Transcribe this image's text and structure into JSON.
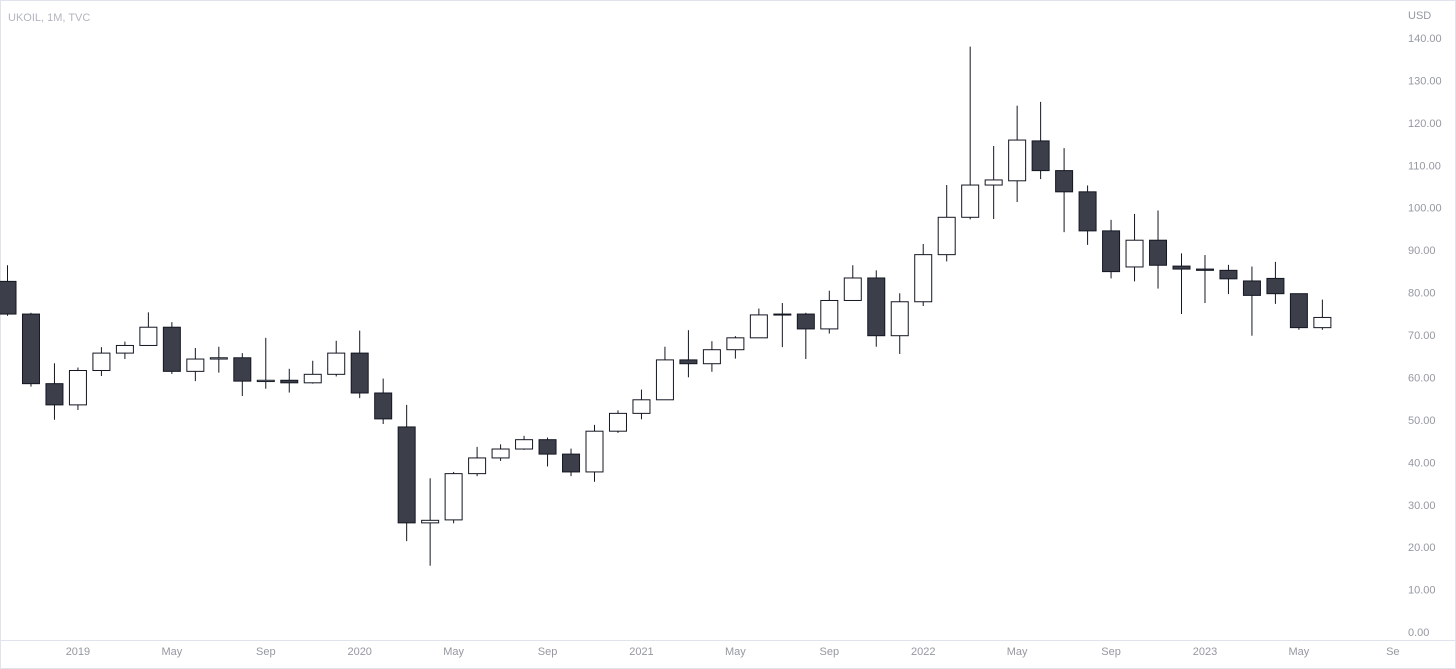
{
  "chart_data": {
    "type": "candlestick",
    "title": "UKOIL, 1M, TVC",
    "currency": "USD",
    "x": [
      "2018-10",
      "2018-11",
      "2018-12",
      "2019-01",
      "2019-02",
      "2019-03",
      "2019-04",
      "2019-05",
      "2019-06",
      "2019-07",
      "2019-08",
      "2019-09",
      "2019-10",
      "2019-11",
      "2019-12",
      "2020-01",
      "2020-02",
      "2020-03",
      "2020-04",
      "2020-05",
      "2020-06",
      "2020-07",
      "2020-08",
      "2020-09",
      "2020-10",
      "2020-11",
      "2020-12",
      "2021-01",
      "2021-02",
      "2021-03",
      "2021-04",
      "2021-05",
      "2021-06",
      "2021-07",
      "2021-08",
      "2021-09",
      "2021-10",
      "2021-11",
      "2021-12",
      "2022-01",
      "2022-02",
      "2022-03",
      "2022-04",
      "2022-05",
      "2022-06",
      "2022-07",
      "2022-08",
      "2022-09",
      "2022-10",
      "2022-11",
      "2022-12",
      "2023-01",
      "2023-02",
      "2023-03",
      "2023-04",
      "2023-05",
      "2023-06"
    ],
    "open": [
      82.9,
      75.2,
      58.8,
      53.8,
      61.9,
      66.0,
      67.8,
      72.1,
      61.7,
      64.6,
      64.9,
      59.3,
      59.6,
      59.0,
      61.0,
      66.0,
      56.6,
      48.6,
      26.0,
      26.7,
      37.6,
      41.3,
      43.4,
      45.6,
      42.2,
      38.0,
      47.6,
      51.8,
      55.0,
      64.4,
      63.5,
      66.8,
      69.6,
      75.0,
      75.2,
      71.7,
      78.4,
      83.7,
      70.1,
      78.1,
      89.2,
      98.0,
      105.6,
      106.6,
      116.0,
      109.0,
      104.0,
      94.8,
      86.3,
      92.6,
      86.5,
      85.8,
      85.5,
      83.0,
      83.6,
      80.0,
      72.0
    ],
    "high": [
      86.7,
      75.5,
      63.6,
      62.6,
      67.4,
      68.7,
      75.6,
      73.3,
      67.2,
      67.5,
      66.0,
      69.6,
      62.3,
      64.2,
      68.9,
      71.3,
      60.0,
      53.8,
      36.5,
      38.0,
      43.9,
      44.5,
      46.5,
      46.1,
      43.5,
      49.1,
      52.5,
      57.4,
      67.5,
      71.4,
      68.8,
      70.0,
      76.5,
      77.8,
      75.5,
      80.7,
      86.7,
      85.5,
      80.1,
      91.7,
      105.6,
      138.2,
      114.8,
      124.3,
      125.2,
      114.3,
      105.5,
      97.4,
      98.8,
      99.6,
      89.5,
      89.1,
      86.8,
      86.4,
      87.5,
      80.0,
      78.6
    ],
    "low": [
      74.8,
      58.1,
      50.3,
      52.6,
      60.6,
      64.6,
      67.7,
      61.1,
      59.4,
      61.4,
      55.9,
      57.6,
      56.7,
      58.8,
      60.5,
      55.4,
      49.3,
      21.7,
      15.9,
      25.9,
      37.0,
      40.6,
      43.2,
      39.3,
      37.0,
      35.7,
      47.2,
      50.4,
      55.0,
      60.3,
      61.6,
      64.7,
      69.6,
      67.4,
      64.6,
      70.6,
      78.3,
      67.5,
      65.8,
      77.1,
      87.6,
      97.5,
      97.6,
      101.6,
      107.0,
      94.5,
      91.5,
      83.6,
      82.9,
      81.2,
      75.2,
      77.8,
      79.9,
      70.1,
      77.6,
      71.5,
      71.5
    ],
    "close": [
      75.2,
      58.8,
      53.8,
      61.9,
      66.0,
      67.8,
      72.1,
      61.7,
      64.6,
      64.9,
      59.4,
      59.6,
      59.0,
      61.0,
      66.0,
      56.6,
      50.5,
      26.0,
      26.6,
      37.6,
      41.3,
      43.4,
      45.6,
      42.2,
      38.0,
      47.6,
      51.8,
      55.0,
      64.4,
      63.5,
      66.8,
      69.6,
      75.0,
      75.2,
      71.7,
      78.4,
      83.7,
      70.1,
      78.1,
      89.2,
      98.0,
      105.6,
      106.8,
      116.2,
      109.0,
      104.0,
      94.8,
      85.2,
      92.6,
      86.7,
      85.8,
      85.5,
      83.5,
      79.6,
      80.0,
      72.0,
      74.4
    ],
    "up_color": "#ffffff",
    "down_color": "#3c3f4a",
    "border_color": "#131722",
    "ylim": [
      -1.6,
      149.2
    ],
    "yticks": [
      {
        "value": 0,
        "label": "0.00"
      },
      {
        "value": 10,
        "label": "10.00"
      },
      {
        "value": 20,
        "label": "20.00"
      },
      {
        "value": 30,
        "label": "30.00"
      },
      {
        "value": 40,
        "label": "40.00"
      },
      {
        "value": 50,
        "label": "50.00"
      },
      {
        "value": 60,
        "label": "60.00"
      },
      {
        "value": 70,
        "label": "70.00"
      },
      {
        "value": 80,
        "label": "80.00"
      },
      {
        "value": 90,
        "label": "90.00"
      },
      {
        "value": 100,
        "label": "100.00"
      },
      {
        "value": 110,
        "label": "110.00"
      },
      {
        "value": 120,
        "label": "120.00"
      },
      {
        "value": 130,
        "label": "130.00"
      },
      {
        "value": 140,
        "label": "140.00"
      }
    ],
    "xticks": [
      {
        "value": "2019-01",
        "label": "2019"
      },
      {
        "value": "2019-05",
        "label": "May"
      },
      {
        "value": "2019-09",
        "label": "Sep"
      },
      {
        "value": "2020-01",
        "label": "2020"
      },
      {
        "value": "2020-05",
        "label": "May"
      },
      {
        "value": "2020-09",
        "label": "Sep"
      },
      {
        "value": "2021-01",
        "label": "2021"
      },
      {
        "value": "2021-05",
        "label": "May"
      },
      {
        "value": "2021-09",
        "label": "Sep"
      },
      {
        "value": "2022-01",
        "label": "2022"
      },
      {
        "value": "2022-05",
        "label": "May"
      },
      {
        "value": "2022-09",
        "label": "Sep"
      },
      {
        "value": "2023-01",
        "label": "2023"
      },
      {
        "value": "2023-05",
        "label": "May"
      },
      {
        "value": "2023-09",
        "label": "Se"
      }
    ]
  }
}
